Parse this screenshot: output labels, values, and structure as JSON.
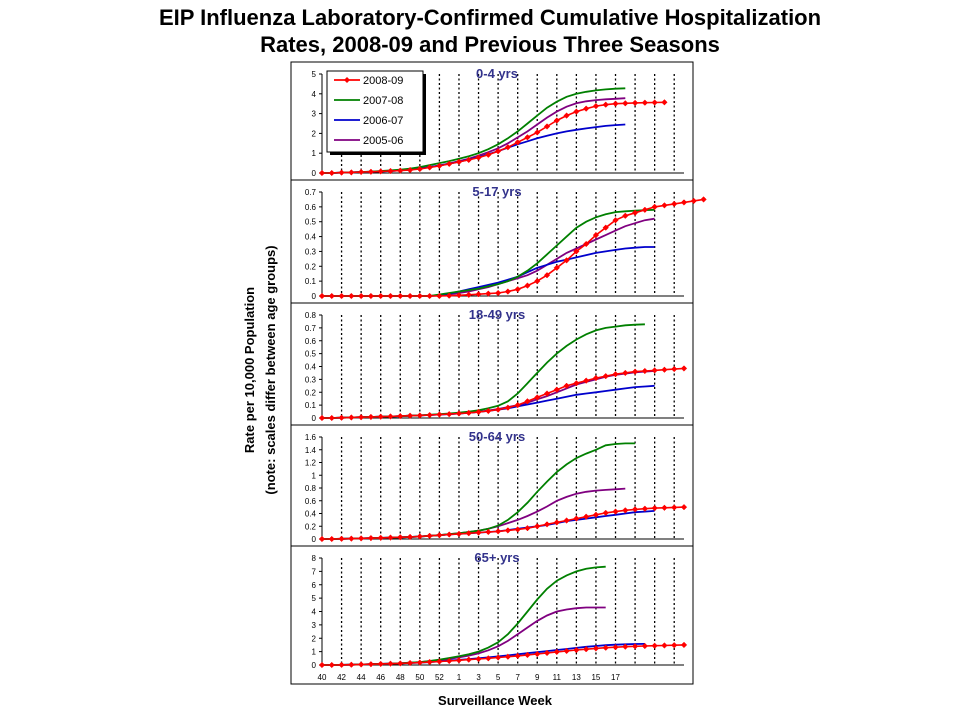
{
  "title": {
    "line1": "EIP Influenza Laboratory-Confirmed Cumulative Hospitalization",
    "line2": "Rates, 2008-09 and Previous Three Seasons"
  },
  "chart_data": {
    "type": "line",
    "title": "EIP Influenza Laboratory-Confirmed Cumulative Hospitalization Rates, 2008-09 and Previous Three Seasons",
    "xlabel": "Surveillance Week",
    "ylabel_line1": "Rate per 10,000 Population",
    "ylabel_line2": "(note: scales differ between age groups)",
    "x_tick_labels": [
      "40",
      "42",
      "44",
      "46",
      "48",
      "50",
      "52",
      "1",
      "3",
      "5",
      "7",
      "9",
      "11",
      "13",
      "15",
      "17"
    ],
    "x_index_range": [
      0,
      37
    ],
    "grid": "vertical dotted lines every other week",
    "legend_position": "top-left of first panel",
    "series_meta": [
      {
        "name": "2008-09",
        "color": "#ff0000",
        "markers": true
      },
      {
        "name": "2007-08",
        "color": "#008000",
        "markers": false
      },
      {
        "name": "2006-07",
        "color": "#0000cc",
        "markers": false
      },
      {
        "name": "2005-06",
        "color": "#800080",
        "markers": false
      }
    ],
    "panels": [
      {
        "label": "0-4 yrs",
        "ylim": [
          0,
          5
        ],
        "yticks": [
          "0",
          "1",
          "2",
          "3",
          "4",
          "5"
        ],
        "series": [
          {
            "name": "2008-09",
            "values": [
              0,
              0,
              0.02,
              0.03,
              0.05,
              0.06,
              0.08,
              0.1,
              0.12,
              0.15,
              0.2,
              0.28,
              0.36,
              0.46,
              0.56,
              0.66,
              0.78,
              0.92,
              1.1,
              1.3,
              1.55,
              1.8,
              2.05,
              2.35,
              2.65,
              2.9,
              3.1,
              3.25,
              3.38,
              3.45,
              3.5,
              3.52,
              3.54,
              3.55,
              3.56,
              3.57
            ]
          },
          {
            "name": "2007-08",
            "values": [
              0,
              0,
              0.02,
              0.03,
              0.05,
              0.07,
              0.1,
              0.13,
              0.17,
              0.22,
              0.3,
              0.4,
              0.5,
              0.6,
              0.72,
              0.85,
              1.0,
              1.2,
              1.45,
              1.75,
              2.1,
              2.5,
              2.9,
              3.3,
              3.6,
              3.85,
              4.0,
              4.1,
              4.17,
              4.22,
              4.26,
              4.28
            ]
          },
          {
            "name": "2006-07",
            "values": [
              0,
              0,
              0.02,
              0.03,
              0.05,
              0.06,
              0.08,
              0.1,
              0.13,
              0.17,
              0.23,
              0.3,
              0.38,
              0.47,
              0.57,
              0.68,
              0.8,
              0.95,
              1.1,
              1.28,
              1.45,
              1.6,
              1.75,
              1.88,
              2.0,
              2.1,
              2.18,
              2.25,
              2.32,
              2.38,
              2.42,
              2.45
            ]
          },
          {
            "name": "2005-06",
            "values": [
              0,
              0,
              0.02,
              0.03,
              0.05,
              0.06,
              0.08,
              0.1,
              0.13,
              0.17,
              0.23,
              0.3,
              0.38,
              0.48,
              0.6,
              0.72,
              0.88,
              1.05,
              1.25,
              1.5,
              1.8,
              2.1,
              2.45,
              2.8,
              3.1,
              3.35,
              3.52,
              3.62,
              3.68,
              3.72,
              3.75,
              3.78
            ]
          }
        ]
      },
      {
        "label": "5-17 yrs",
        "ylim": [
          0,
          0.7
        ],
        "yticks": [
          "0",
          "0.1",
          "0.2",
          "0.3",
          "0.4",
          "0.5",
          "0.6",
          "0.7"
        ],
        "series": [
          {
            "name": "2008-09",
            "values": [
              0,
              0,
              0,
              0,
              0,
              0,
              0,
              0,
              0,
              0,
              0,
              0,
              0,
              0.002,
              0.005,
              0.008,
              0.012,
              0.016,
              0.02,
              0.03,
              0.045,
              0.07,
              0.1,
              0.14,
              0.19,
              0.24,
              0.3,
              0.35,
              0.41,
              0.46,
              0.51,
              0.54,
              0.56,
              0.58,
              0.6,
              0.61,
              0.62,
              0.63,
              0.64,
              0.65
            ]
          },
          {
            "name": "2007-08",
            "values": [
              0,
              0,
              0,
              0,
              0,
              0,
              0,
              0,
              0,
              0,
              0,
              0,
              0.01,
              0.02,
              0.03,
              0.04,
              0.05,
              0.065,
              0.08,
              0.1,
              0.13,
              0.17,
              0.22,
              0.28,
              0.34,
              0.4,
              0.46,
              0.5,
              0.53,
              0.55,
              0.565,
              0.57,
              0.575,
              0.578,
              0.58
            ]
          },
          {
            "name": "2006-07",
            "values": [
              0,
              0,
              0,
              0,
              0,
              0,
              0,
              0,
              0,
              0,
              0,
              0,
              0.005,
              0.015,
              0.03,
              0.045,
              0.06,
              0.075,
              0.09,
              0.11,
              0.13,
              0.16,
              0.19,
              0.21,
              0.23,
              0.245,
              0.26,
              0.275,
              0.29,
              0.3,
              0.31,
              0.32,
              0.325,
              0.33,
              0.33
            ]
          },
          {
            "name": "2005-06",
            "values": [
              0,
              0,
              0,
              0,
              0,
              0,
              0,
              0,
              0,
              0,
              0,
              0,
              0.005,
              0.01,
              0.02,
              0.03,
              0.045,
              0.06,
              0.08,
              0.1,
              0.12,
              0.14,
              0.17,
              0.21,
              0.25,
              0.29,
              0.32,
              0.35,
              0.38,
              0.41,
              0.44,
              0.47,
              0.49,
              0.51,
              0.52
            ]
          }
        ]
      },
      {
        "label": "18-49 yrs",
        "ylim": [
          0,
          0.8
        ],
        "yticks": [
          "0",
          "0.1",
          "0.2",
          "0.3",
          "0.4",
          "0.5",
          "0.6",
          "0.7",
          "0.8"
        ],
        "series": [
          {
            "name": "2008-09",
            "values": [
              0,
              0,
              0.002,
              0.004,
              0.006,
              0.008,
              0.01,
              0.012,
              0.015,
              0.018,
              0.02,
              0.023,
              0.027,
              0.03,
              0.035,
              0.04,
              0.047,
              0.055,
              0.065,
              0.08,
              0.1,
              0.13,
              0.16,
              0.19,
              0.22,
              0.25,
              0.27,
              0.29,
              0.31,
              0.325,
              0.34,
              0.35,
              0.36,
              0.365,
              0.37,
              0.375,
              0.38,
              0.385
            ]
          },
          {
            "name": "2007-08",
            "values": [
              0,
              0,
              0.002,
              0.004,
              0.006,
              0.008,
              0.01,
              0.012,
              0.015,
              0.018,
              0.02,
              0.025,
              0.03,
              0.035,
              0.042,
              0.05,
              0.06,
              0.075,
              0.095,
              0.13,
              0.19,
              0.27,
              0.35,
              0.43,
              0.5,
              0.56,
              0.61,
              0.65,
              0.68,
              0.7,
              0.71,
              0.72,
              0.725,
              0.728
            ]
          },
          {
            "name": "2006-07",
            "values": [
              0,
              0,
              0.002,
              0.004,
              0.006,
              0.008,
              0.01,
              0.012,
              0.015,
              0.018,
              0.02,
              0.023,
              0.027,
              0.03,
              0.035,
              0.04,
              0.047,
              0.055,
              0.065,
              0.075,
              0.09,
              0.105,
              0.12,
              0.135,
              0.15,
              0.165,
              0.18,
              0.19,
              0.2,
              0.21,
              0.22,
              0.23,
              0.24,
              0.245,
              0.25
            ]
          },
          {
            "name": "2005-06",
            "values": [
              0,
              0,
              0.002,
              0.004,
              0.006,
              0.008,
              0.01,
              0.012,
              0.015,
              0.018,
              0.02,
              0.023,
              0.027,
              0.03,
              0.035,
              0.04,
              0.048,
              0.058,
              0.07,
              0.085,
              0.1,
              0.12,
              0.145,
              0.17,
              0.2,
              0.23,
              0.26,
              0.28,
              0.3,
              0.32,
              0.335,
              0.345,
              0.355,
              0.36,
              0.365
            ]
          }
        ]
      },
      {
        "label": "50-64 yrs",
        "ylim": [
          0,
          1.6
        ],
        "yticks": [
          "0",
          "0.2",
          "0.4",
          "0.6",
          "0.8",
          "1",
          "1.2",
          "1.4",
          "1.6"
        ],
        "series": [
          {
            "name": "2008-09",
            "values": [
              0,
              0,
              0.003,
              0.006,
              0.01,
              0.014,
              0.018,
              0.022,
              0.027,
              0.032,
              0.04,
              0.05,
              0.06,
              0.07,
              0.08,
              0.09,
              0.1,
              0.11,
              0.12,
              0.135,
              0.15,
              0.17,
              0.2,
              0.23,
              0.26,
              0.29,
              0.32,
              0.35,
              0.38,
              0.41,
              0.43,
              0.45,
              0.465,
              0.475,
              0.485,
              0.49,
              0.495,
              0.5
            ]
          },
          {
            "name": "2007-08",
            "values": [
              0,
              0,
              0.003,
              0.006,
              0.01,
              0.014,
              0.018,
              0.022,
              0.027,
              0.032,
              0.04,
              0.05,
              0.06,
              0.075,
              0.09,
              0.11,
              0.13,
              0.16,
              0.21,
              0.3,
              0.42,
              0.57,
              0.74,
              0.9,
              1.05,
              1.17,
              1.27,
              1.34,
              1.4,
              1.47,
              1.49,
              1.5,
              1.5
            ]
          },
          {
            "name": "2006-07",
            "values": [
              0,
              0,
              0.003,
              0.006,
              0.01,
              0.014,
              0.018,
              0.022,
              0.027,
              0.032,
              0.04,
              0.05,
              0.06,
              0.07,
              0.08,
              0.09,
              0.1,
              0.11,
              0.12,
              0.14,
              0.16,
              0.18,
              0.2,
              0.22,
              0.25,
              0.28,
              0.3,
              0.32,
              0.34,
              0.36,
              0.38,
              0.4,
              0.42,
              0.43,
              0.44
            ]
          },
          {
            "name": "2005-06",
            "values": [
              0,
              0,
              0.003,
              0.006,
              0.01,
              0.014,
              0.018,
              0.022,
              0.027,
              0.032,
              0.04,
              0.05,
              0.06,
              0.075,
              0.09,
              0.11,
              0.13,
              0.16,
              0.2,
              0.25,
              0.3,
              0.36,
              0.43,
              0.51,
              0.6,
              0.66,
              0.71,
              0.74,
              0.76,
              0.77,
              0.78,
              0.79
            ]
          }
        ]
      },
      {
        "label": "65+ yrs",
        "ylim": [
          0,
          8
        ],
        "yticks": [
          "0",
          "1",
          "2",
          "3",
          "4",
          "5",
          "6",
          "7",
          "8"
        ],
        "series": [
          {
            "name": "2008-09",
            "values": [
              0,
              0,
              0.01,
              0.02,
              0.04,
              0.06,
              0.08,
              0.1,
              0.12,
              0.15,
              0.18,
              0.22,
              0.26,
              0.3,
              0.35,
              0.4,
              0.45,
              0.5,
              0.56,
              0.62,
              0.68,
              0.75,
              0.82,
              0.9,
              0.98,
              1.05,
              1.12,
              1.18,
              1.24,
              1.29,
              1.33,
              1.37,
              1.4,
              1.42,
              1.44,
              1.46,
              1.48,
              1.5
            ]
          },
          {
            "name": "2007-08",
            "values": [
              0,
              0,
              0.01,
              0.02,
              0.04,
              0.06,
              0.08,
              0.1,
              0.13,
              0.17,
              0.22,
              0.3,
              0.4,
              0.52,
              0.65,
              0.8,
              1.0,
              1.3,
              1.7,
              2.3,
              3.1,
              4.0,
              4.9,
              5.7,
              6.3,
              6.7,
              7.0,
              7.2,
              7.3,
              7.35
            ]
          },
          {
            "name": "2006-07",
            "values": [
              0,
              0,
              0.01,
              0.02,
              0.04,
              0.06,
              0.08,
              0.1,
              0.12,
              0.15,
              0.18,
              0.22,
              0.27,
              0.32,
              0.38,
              0.44,
              0.5,
              0.57,
              0.64,
              0.72,
              0.8,
              0.88,
              0.96,
              1.04,
              1.12,
              1.2,
              1.28,
              1.36,
              1.42,
              1.48,
              1.52,
              1.55,
              1.57,
              1.58
            ]
          },
          {
            "name": "2005-06",
            "values": [
              0,
              0,
              0.01,
              0.02,
              0.04,
              0.06,
              0.08,
              0.1,
              0.13,
              0.17,
              0.22,
              0.29,
              0.37,
              0.46,
              0.57,
              0.7,
              0.87,
              1.1,
              1.4,
              1.8,
              2.3,
              2.8,
              3.3,
              3.7,
              4.0,
              4.15,
              4.25,
              4.3,
              4.3,
              4.3
            ]
          }
        ]
      }
    ]
  }
}
